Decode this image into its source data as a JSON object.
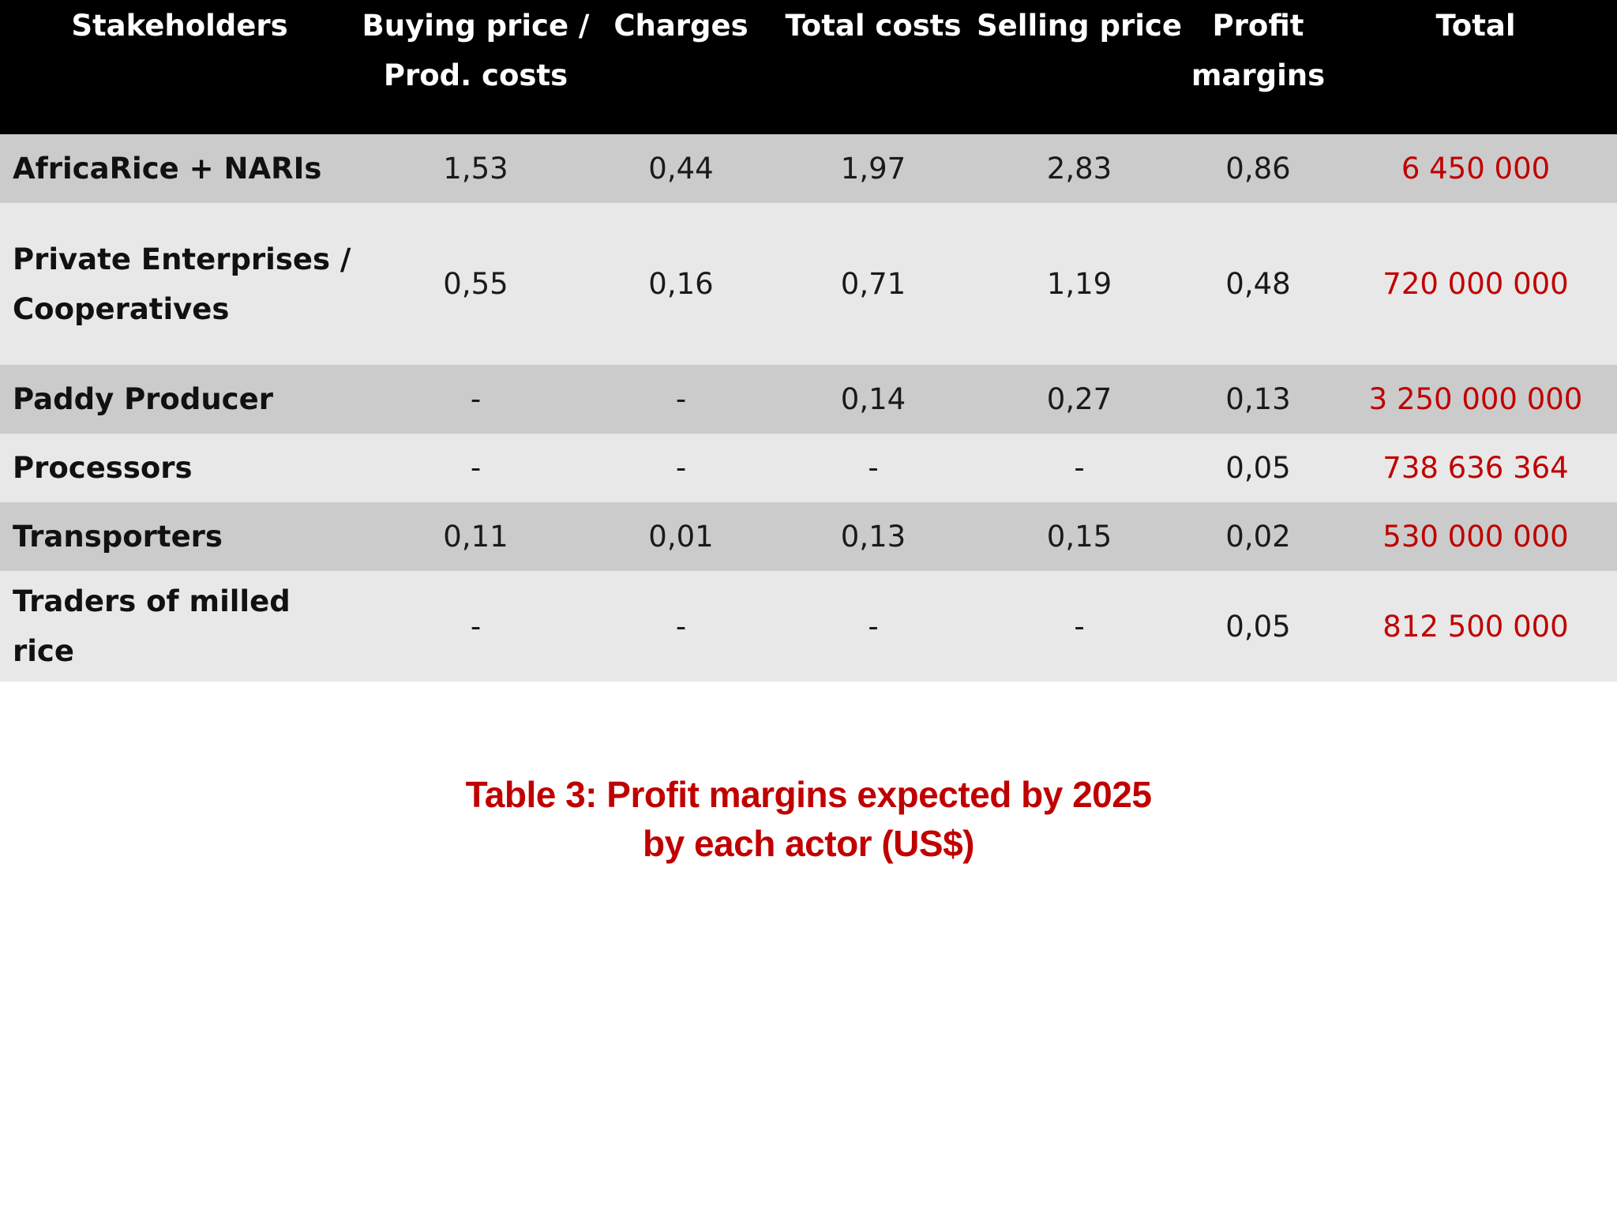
{
  "table": {
    "headers": {
      "stakeholders": [
        "Stakeholders"
      ],
      "buying_price": [
        "Buying price /",
        "Prod. costs"
      ],
      "charges": [
        "Charges"
      ],
      "total_costs": [
        "Total costs"
      ],
      "selling_price": [
        "Selling price"
      ],
      "profit_margins": [
        "Profit",
        "margins"
      ],
      "total": [
        "Total"
      ]
    },
    "rows": [
      {
        "stakeholder": [
          "AfricaRice + NARIs"
        ],
        "buying_price": "1,53",
        "charges": "0,44",
        "total_costs": "1,97",
        "selling_price": "2,83",
        "profit_margins": "0,86",
        "total": "6 450 000"
      },
      {
        "stakeholder": [
          "Private Enterprises /",
          "Cooperatives"
        ],
        "buying_price": "0,55",
        "charges": "0,16",
        "total_costs": "0,71",
        "selling_price": "1,19",
        "profit_margins": "0,48",
        "total": "720 000 000"
      },
      {
        "stakeholder": [
          "Paddy Producer"
        ],
        "buying_price": "-",
        "charges": "-",
        "total_costs": "0,14",
        "selling_price": "0,27",
        "profit_margins": "0,13",
        "total": "3 250 000 000"
      },
      {
        "stakeholder": [
          "Processors"
        ],
        "buying_price": "-",
        "charges": "-",
        "total_costs": "-",
        "selling_price": "-",
        "profit_margins": "0,05",
        "total": "738 636 364"
      },
      {
        "stakeholder": [
          "Transporters"
        ],
        "buying_price": "0,11",
        "charges": "0,01",
        "total_costs": "0,13",
        "selling_price": "0,15",
        "profit_margins": "0,02",
        "total": "530 000 000"
      },
      {
        "stakeholder": [
          "Traders of milled rice"
        ],
        "buying_price": "-",
        "charges": "-",
        "total_costs": "-",
        "selling_price": "-",
        "profit_margins": "0,05",
        "total": "812 500 000"
      }
    ]
  },
  "caption": {
    "line1": "Table 3: Profit margins expected by 2025",
    "line2": "by each actor (US$)"
  },
  "colors": {
    "header_background": "#000000",
    "header_text": "#ffffff",
    "row_dark": "#cbcbcb",
    "row_light": "#e8e8e8",
    "total_text": "#c00000",
    "caption_text": "#c00000"
  }
}
